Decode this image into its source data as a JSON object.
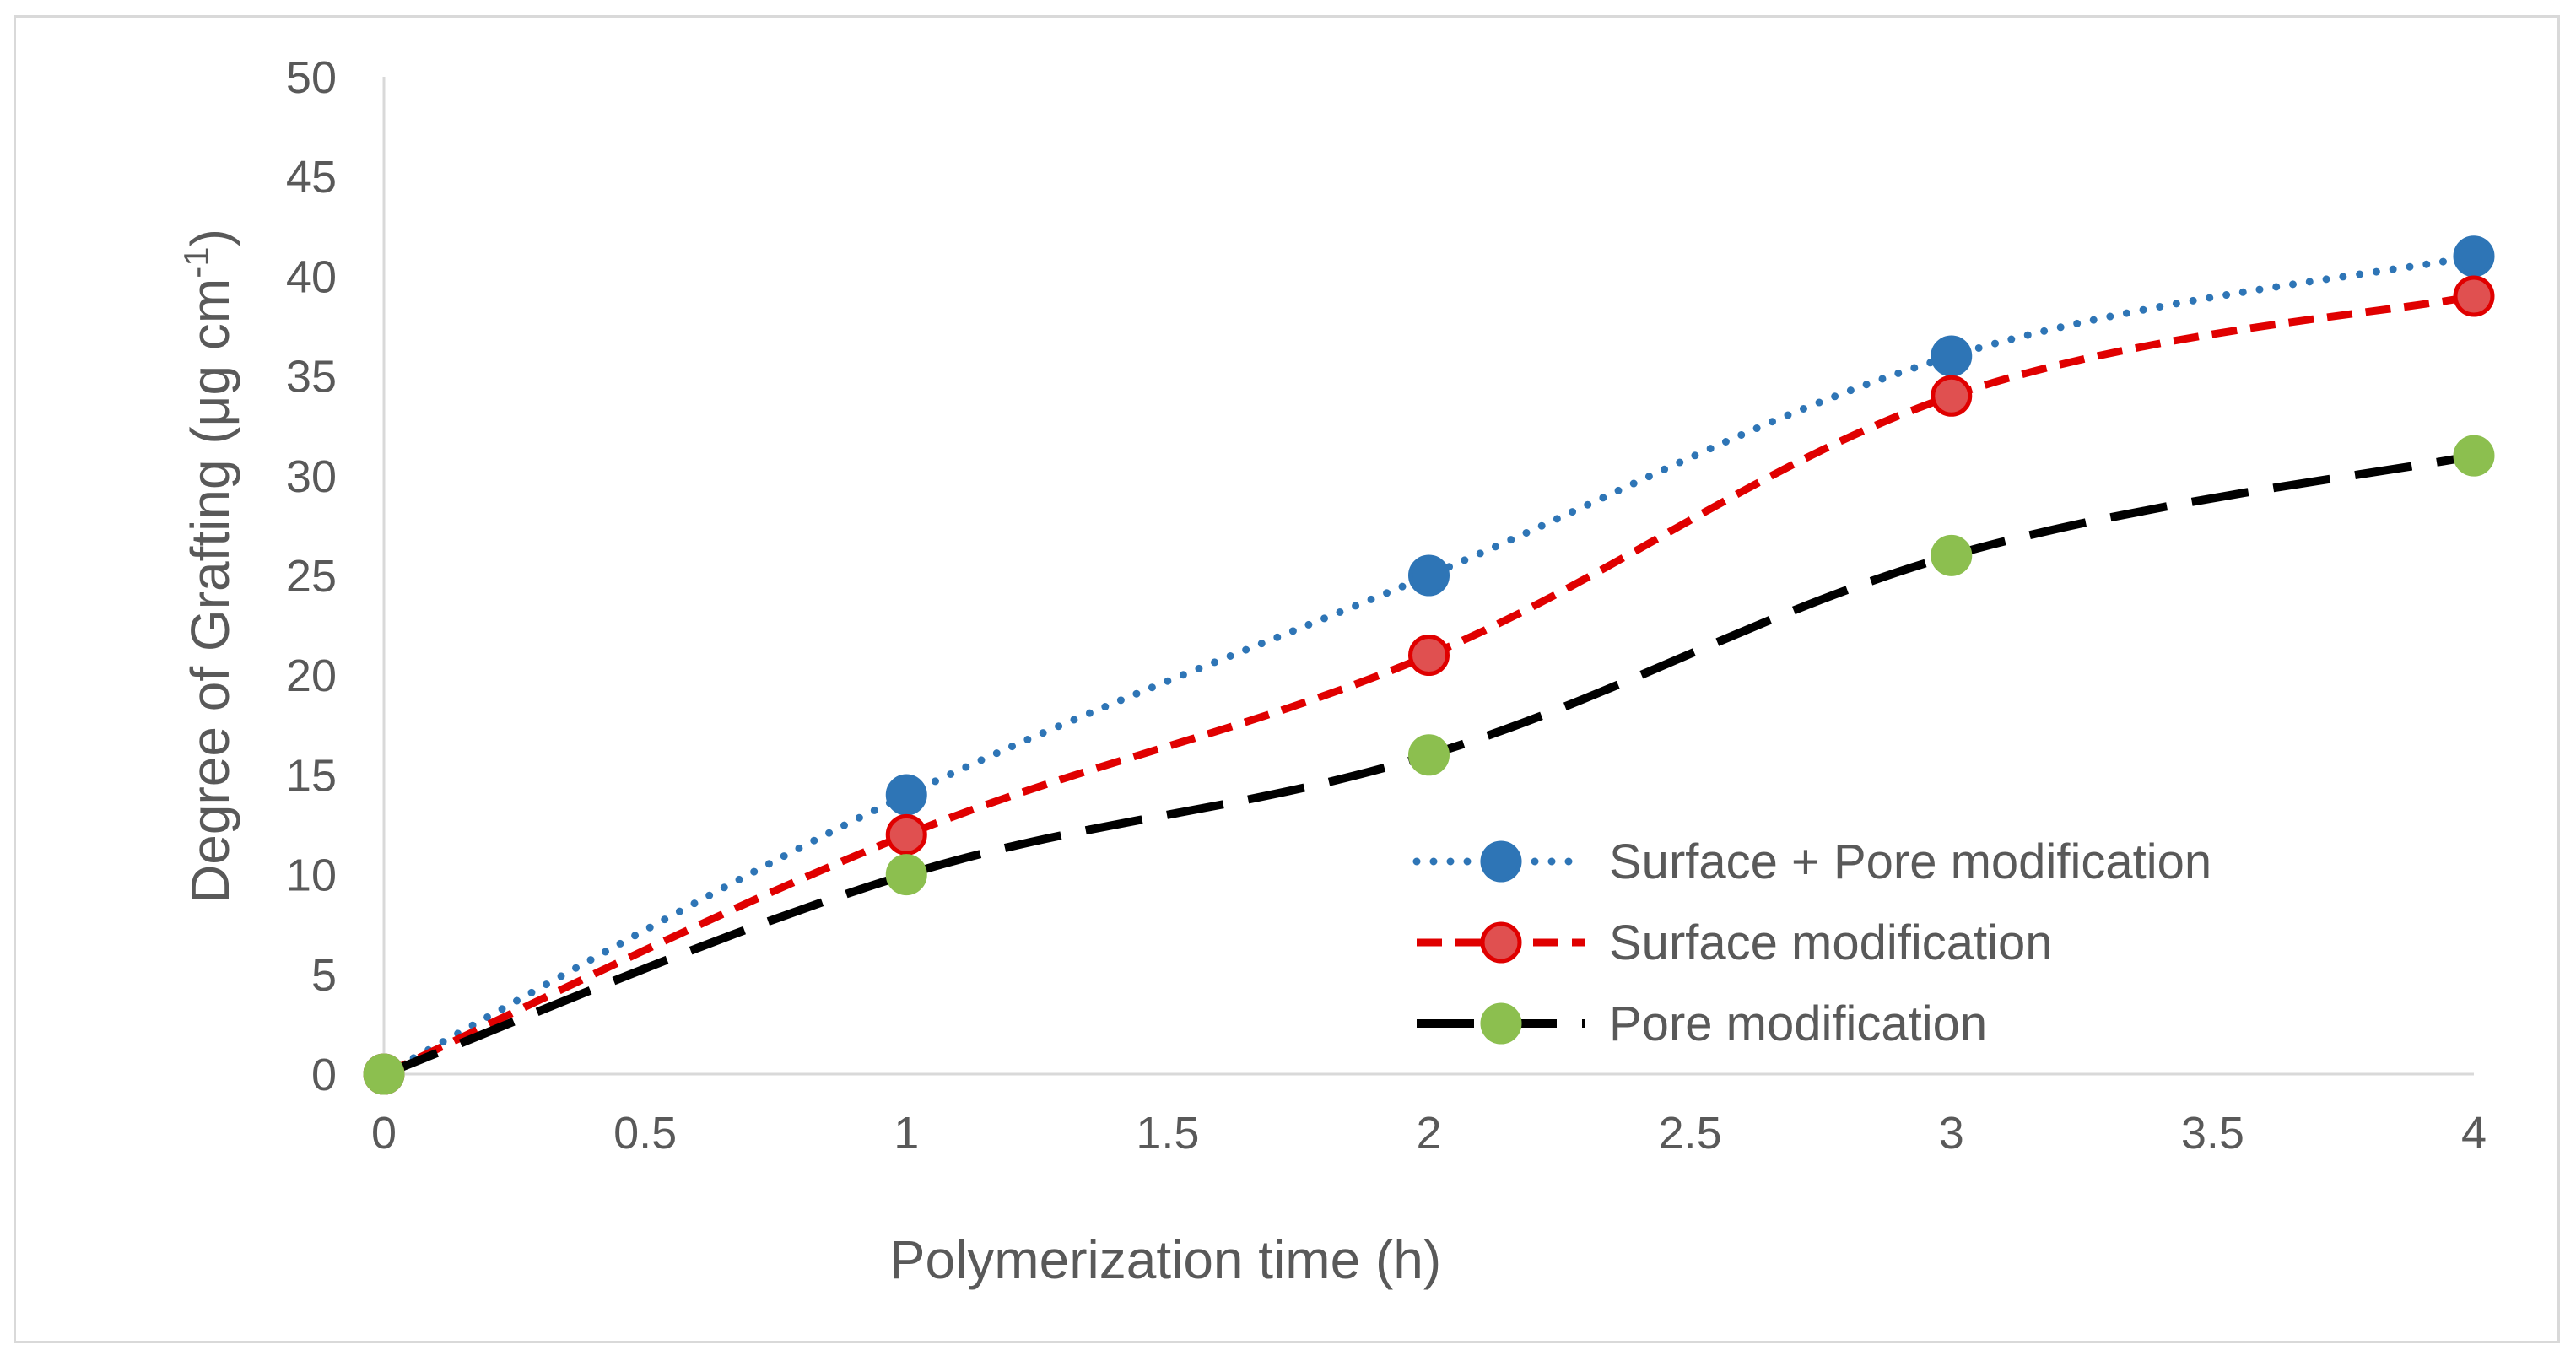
{
  "chart_data": {
    "type": "line",
    "title": "",
    "xlabel": "Polymerization time (h)",
    "ylabel": {
      "main": "Degree of Grafting (μg cm",
      "sup": "-1",
      "close": ")"
    },
    "xlim": [
      0,
      4
    ],
    "ylim": [
      0,
      50
    ],
    "xticks": [
      "0",
      "0.5",
      "1",
      "1.5",
      "2",
      "2.5",
      "3",
      "3.5",
      "4"
    ],
    "yticks": [
      "0",
      "5",
      "10",
      "15",
      "20",
      "25",
      "30",
      "35",
      "40",
      "45",
      "50"
    ],
    "grid": false,
    "legend_position": "bottom-right",
    "x": [
      0,
      1,
      2,
      3,
      4
    ],
    "series": [
      {
        "name": "Surface + Pore modification",
        "values": [
          0,
          14,
          25,
          36,
          41
        ],
        "line_color": "#2e75b6",
        "marker_fill": "#2e75b6",
        "marker_edge": "#2e75b6",
        "line_style": "dotted"
      },
      {
        "name": "Surface modification",
        "values": [
          0,
          12,
          21,
          34,
          39
        ],
        "line_color": "#e00000",
        "marker_fill": "#e05050",
        "marker_edge": "#e00000",
        "line_style": "dashed"
      },
      {
        "name": "Pore modification",
        "values": [
          0,
          10,
          16,
          26,
          31
        ],
        "line_color": "#000000",
        "marker_fill": "#8cbf4f",
        "marker_edge": "#8cbf4f",
        "line_style": "long-dash"
      }
    ]
  }
}
